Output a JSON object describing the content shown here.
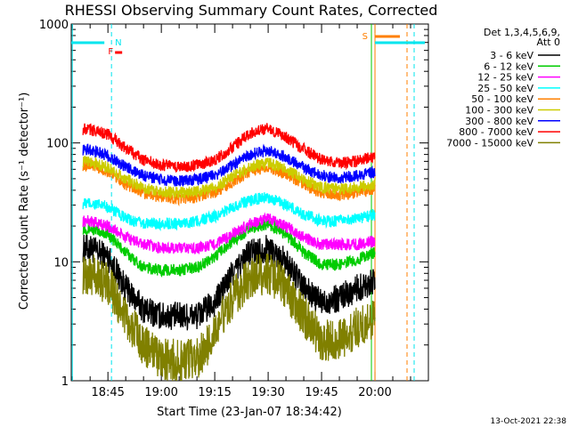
{
  "chart_data": {
    "type": "line",
    "title": "RHESSI Observing Summary Count Rates, Corrected",
    "xlabel": "Start Time (23-Jan-07 18:34:42)",
    "ylabel": "Corrected Count Rate (s⁻¹ detector⁻¹)",
    "y_scale": "log",
    "ylim": [
      1,
      1000
    ],
    "xlim": [
      "18:34:42",
      "20:15:00"
    ],
    "x_ticks": [
      "18:45",
      "19:00",
      "19:15",
      "19:30",
      "19:45",
      "20:00"
    ],
    "y_ticks": [
      "1",
      "10",
      "100",
      "1000"
    ],
    "legend_header": [
      "Det 1,3,4,5,6,9,",
      "Att 0"
    ],
    "legend_placement": "right",
    "footer_date": "13-Oct-2021 22:38",
    "flags": {
      "F": {
        "label": "F",
        "color": "#ff0000"
      },
      "N": {
        "label": "N",
        "color": "#00e5ee"
      },
      "S": {
        "label": "S",
        "color": "#ff7f00"
      }
    },
    "series": [
      {
        "name": "3 - 6 keV",
        "color": "#000000",
        "x": [
          "18:40",
          "18:45",
          "18:50",
          "18:55",
          "19:00",
          "19:05",
          "19:10",
          "19:15",
          "19:20",
          "19:25",
          "19:30",
          "19:35",
          "19:40",
          "19:45",
          "19:50",
          "19:55",
          "20:00"
        ],
        "values": [
          13,
          11,
          6,
          4,
          3.5,
          3.5,
          3.5,
          4.5,
          8,
          12,
          13,
          10,
          6,
          4.5,
          5,
          6,
          7
        ]
      },
      {
        "name": "6 - 12 keV",
        "color": "#00cc00",
        "x": [
          "18:40",
          "18:45",
          "18:50",
          "18:55",
          "19:00",
          "19:05",
          "19:10",
          "19:15",
          "19:20",
          "19:25",
          "19:30",
          "19:35",
          "19:40",
          "19:45",
          "19:50",
          "19:55",
          "20:00"
        ],
        "values": [
          19,
          17,
          12,
          9,
          8.5,
          8.5,
          9,
          11,
          15,
          19,
          21,
          17,
          12,
          9.5,
          9.5,
          10.5,
          12
        ]
      },
      {
        "name": "12 - 25 keV",
        "color": "#ff00ff",
        "x": [
          "18:40",
          "18:45",
          "18:50",
          "18:55",
          "19:00",
          "19:05",
          "19:10",
          "19:15",
          "19:20",
          "19:25",
          "19:30",
          "19:35",
          "19:40",
          "19:45",
          "19:50",
          "19:55",
          "20:00"
        ],
        "values": [
          22,
          20,
          16,
          14,
          13,
          13,
          13,
          14,
          17,
          21,
          23,
          20,
          16,
          14,
          14,
          14,
          15
        ]
      },
      {
        "name": "25 - 50 keV",
        "color": "#00ffff",
        "x": [
          "18:40",
          "18:45",
          "18:50",
          "18:55",
          "19:00",
          "19:05",
          "19:10",
          "19:15",
          "19:20",
          "19:25",
          "19:30",
          "19:35",
          "19:40",
          "19:45",
          "19:50",
          "19:55",
          "20:00"
        ],
        "values": [
          31,
          29,
          23,
          21,
          21,
          21,
          22,
          24,
          29,
          33,
          35,
          30,
          25,
          22,
          22,
          23,
          25
        ]
      },
      {
        "name": "50 - 100 keV",
        "color": "#ff8000",
        "x": [
          "18:40",
          "18:45",
          "18:50",
          "18:55",
          "19:00",
          "19:05",
          "19:10",
          "19:15",
          "19:20",
          "19:25",
          "19:30",
          "19:35",
          "19:40",
          "19:45",
          "19:50",
          "19:55",
          "20:00"
        ],
        "values": [
          65,
          57,
          45,
          38,
          35,
          34,
          35,
          38,
          47,
          58,
          63,
          55,
          45,
          38,
          37,
          38,
          41
        ]
      },
      {
        "name": "100 - 300 keV",
        "color": "#cccc00",
        "x": [
          "18:40",
          "18:45",
          "18:50",
          "18:55",
          "19:00",
          "19:05",
          "19:10",
          "19:15",
          "19:20",
          "19:25",
          "19:30",
          "19:35",
          "19:40",
          "19:45",
          "19:50",
          "19:55",
          "20:00"
        ],
        "values": [
          70,
          62,
          50,
          42,
          39,
          38,
          39,
          42,
          52,
          63,
          68,
          60,
          49,
          42,
          41,
          42,
          45
        ]
      },
      {
        "name": "300 - 800 keV",
        "color": "#0000ff",
        "x": [
          "18:40",
          "18:45",
          "18:50",
          "18:55",
          "19:00",
          "19:05",
          "19:10",
          "19:15",
          "19:20",
          "19:25",
          "19:30",
          "19:35",
          "19:40",
          "19:45",
          "19:50",
          "19:55",
          "20:00"
        ],
        "values": [
          88,
          78,
          63,
          53,
          49,
          48,
          49,
          53,
          65,
          80,
          87,
          76,
          62,
          53,
          51,
          53,
          57
        ]
      },
      {
        "name": "800 - 7000 keV",
        "color": "#ff0000",
        "x": [
          "18:40",
          "18:45",
          "18:50",
          "18:55",
          "19:00",
          "19:05",
          "19:10",
          "19:15",
          "19:20",
          "19:25",
          "19:30",
          "19:35",
          "19:40",
          "19:45",
          "19:50",
          "19:55",
          "20:00"
        ],
        "values": [
          130,
          118,
          90,
          72,
          65,
          63,
          65,
          72,
          92,
          120,
          133,
          112,
          88,
          72,
          68,
          70,
          78
        ]
      },
      {
        "name": "7000 - 15000 keV",
        "color": "#808000",
        "x": [
          "18:40",
          "18:45",
          "18:50",
          "18:55",
          "19:00",
          "19:05",
          "19:10",
          "19:15",
          "19:20",
          "19:25",
          "19:30",
          "19:35",
          "19:40",
          "19:45",
          "19:50",
          "19:55",
          "20:00"
        ],
        "values": [
          8,
          6.5,
          3.5,
          2,
          1.5,
          1.5,
          1.5,
          2.5,
          5,
          7.5,
          8,
          6,
          3.5,
          2.2,
          2.2,
          2.8,
          3.5
        ]
      }
    ]
  }
}
